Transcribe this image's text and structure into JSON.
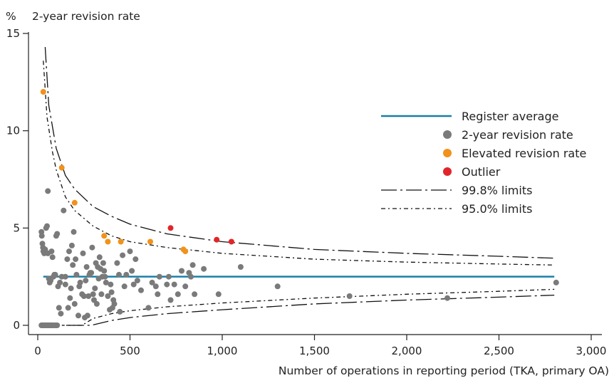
{
  "chart_data": {
    "type": "scatter",
    "title": "2-year revision rate",
    "ylabel": "%",
    "xlabel": "Number of operations in reporting period (TKA, primary OA)",
    "xlim": [
      0,
      3000
    ],
    "ylim": [
      0,
      15
    ],
    "x_ticks": [
      0,
      500,
      1000,
      1500,
      2000,
      2500,
      3000
    ],
    "x_tick_labels": [
      "0",
      "500",
      "1,000",
      "1,500",
      "2,000",
      "2,500",
      "3,000"
    ],
    "y_ticks": [
      0,
      5,
      10,
      15
    ],
    "y_tick_labels": [
      "0",
      "5",
      "10",
      "15"
    ],
    "legend_position": "right",
    "colors": {
      "register_average": "#1a7fa8",
      "revision_rate": "#7a7a7a",
      "elevated": "#f0921b",
      "outlier": "#e0262a",
      "limits": "#111111"
    },
    "register_average": 2.5,
    "legend": [
      {
        "label": "Register average",
        "kind": "line-solid"
      },
      {
        "label": "2-year revision rate",
        "kind": "dot-grey"
      },
      {
        "label": "Elevated revision rate",
        "kind": "dot-orange"
      },
      {
        "label": "Outlier",
        "kind": "dot-red"
      },
      {
        "label": "99.8% limits",
        "kind": "line-longdash"
      },
      {
        "label": "95.0% limits",
        "kind": "line-dashdot"
      }
    ],
    "series": [
      {
        "name": "2-year revision rate",
        "points": [
          [
            20,
            4.8
          ],
          [
            22,
            4.6
          ],
          [
            25,
            4.2
          ],
          [
            28,
            4.0
          ],
          [
            30,
            3.8
          ],
          [
            35,
            3.7
          ],
          [
            40,
            3.9
          ],
          [
            45,
            5.0
          ],
          [
            50,
            5.1
          ],
          [
            55,
            3.7
          ],
          [
            60,
            2.4
          ],
          [
            65,
            2.2
          ],
          [
            70,
            2.3
          ],
          [
            75,
            3.8
          ],
          [
            20,
            0
          ],
          [
            25,
            0
          ],
          [
            30,
            0
          ],
          [
            35,
            0
          ],
          [
            40,
            0
          ],
          [
            45,
            0
          ],
          [
            50,
            0
          ],
          [
            55,
            0
          ],
          [
            60,
            0
          ],
          [
            65,
            0
          ],
          [
            70,
            0
          ],
          [
            75,
            0
          ],
          [
            80,
            0
          ],
          [
            85,
            0
          ],
          [
            95,
            0
          ],
          [
            100,
            0
          ],
          [
            105,
            0
          ],
          [
            55,
            6.9
          ],
          [
            80,
            3.5
          ],
          [
            85,
            2.5
          ],
          [
            90,
            2.6
          ],
          [
            95,
            2.6
          ],
          [
            100,
            4.6
          ],
          [
            105,
            4.7
          ],
          [
            110,
            2.0
          ],
          [
            115,
            0.9
          ],
          [
            120,
            2.2
          ],
          [
            125,
            0.6
          ],
          [
            130,
            2.5
          ],
          [
            140,
            5.9
          ],
          [
            150,
            2.5
          ],
          [
            150,
            2.1
          ],
          [
            160,
            3.4
          ],
          [
            165,
            0.9
          ],
          [
            170,
            3.8
          ],
          [
            175,
            1.4
          ],
          [
            180,
            1.9
          ],
          [
            185,
            4.1
          ],
          [
            190,
            3.1
          ],
          [
            195,
            4.8
          ],
          [
            200,
            1.1
          ],
          [
            205,
            3.4
          ],
          [
            210,
            2.6
          ],
          [
            220,
            0.5
          ],
          [
            225,
            2.0
          ],
          [
            230,
            2.2
          ],
          [
            240,
            1.6
          ],
          [
            245,
            3.7
          ],
          [
            250,
            1.5
          ],
          [
            255,
            0.4
          ],
          [
            260,
            2.3
          ],
          [
            265,
            3.0
          ],
          [
            270,
            0.5
          ],
          [
            275,
            1.5
          ],
          [
            280,
            2.6
          ],
          [
            285,
            2.7
          ],
          [
            290,
            2.7
          ],
          [
            295,
            4.0
          ],
          [
            300,
            1.6
          ],
          [
            305,
            1.3
          ],
          [
            310,
            1.9
          ],
          [
            315,
            3.2
          ],
          [
            320,
            1.1
          ],
          [
            325,
            3.0
          ],
          [
            330,
            2.4
          ],
          [
            335,
            3.5
          ],
          [
            340,
            2.9
          ],
          [
            345,
            1.6
          ],
          [
            350,
            2.5
          ],
          [
            355,
            3.2
          ],
          [
            360,
            2.8
          ],
          [
            365,
            2.5
          ],
          [
            370,
            2.2
          ],
          [
            380,
            1.5
          ],
          [
            390,
            0.8
          ],
          [
            395,
            2.1
          ],
          [
            400,
            1.7
          ],
          [
            405,
            0.9
          ],
          [
            410,
            1.3
          ],
          [
            415,
            1.1
          ],
          [
            430,
            3.2
          ],
          [
            440,
            2.6
          ],
          [
            445,
            0.7
          ],
          [
            460,
            3.6
          ],
          [
            470,
            2.0
          ],
          [
            480,
            2.6
          ],
          [
            500,
            3.8
          ],
          [
            510,
            2.8
          ],
          [
            520,
            2.1
          ],
          [
            530,
            3.4
          ],
          [
            540,
            2.3
          ],
          [
            560,
            1.8
          ],
          [
            600,
            0.9
          ],
          [
            620,
            2.2
          ],
          [
            640,
            2.0
          ],
          [
            650,
            1.6
          ],
          [
            660,
            2.5
          ],
          [
            700,
            2.1
          ],
          [
            710,
            2.5
          ],
          [
            720,
            1.3
          ],
          [
            740,
            2.1
          ],
          [
            760,
            1.6
          ],
          [
            780,
            2.8
          ],
          [
            800,
            2.0
          ],
          [
            820,
            2.7
          ],
          [
            830,
            2.5
          ],
          [
            840,
            3.1
          ],
          [
            850,
            1.6
          ],
          [
            900,
            2.9
          ],
          [
            980,
            1.6
          ],
          [
            1100,
            3.0
          ],
          [
            1300,
            2.0
          ],
          [
            1690,
            1.5
          ],
          [
            2220,
            1.4
          ],
          [
            2810,
            2.2
          ]
        ]
      },
      {
        "name": "Elevated revision rate",
        "points": [
          [
            30,
            12.0
          ],
          [
            130,
            8.1
          ],
          [
            200,
            6.3
          ],
          [
            360,
            4.6
          ],
          [
            380,
            4.3
          ],
          [
            450,
            4.3
          ],
          [
            610,
            4.3
          ],
          [
            790,
            3.9
          ],
          [
            800,
            3.8
          ]
        ]
      },
      {
        "name": "Outlier",
        "points": [
          [
            720,
            5.0
          ],
          [
            970,
            4.4
          ],
          [
            1050,
            4.3
          ]
        ]
      }
    ],
    "limits": {
      "upper_99_8": [
        [
          40,
          14.3
        ],
        [
          60,
          11.3
        ],
        [
          100,
          9.1
        ],
        [
          150,
          7.7
        ],
        [
          200,
          7.0
        ],
        [
          300,
          6.1
        ],
        [
          400,
          5.6
        ],
        [
          500,
          5.2
        ],
        [
          700,
          4.7
        ],
        [
          1000,
          4.3
        ],
        [
          1500,
          3.9
        ],
        [
          2000,
          3.7
        ],
        [
          2500,
          3.55
        ],
        [
          2800,
          3.45
        ]
      ],
      "upper_95_0": [
        [
          30,
          13.6
        ],
        [
          50,
          10.7
        ],
        [
          80,
          8.9
        ],
        [
          100,
          8.0
        ],
        [
          150,
          6.6
        ],
        [
          200,
          5.9
        ],
        [
          300,
          5.1
        ],
        [
          400,
          4.6
        ],
        [
          500,
          4.3
        ],
        [
          700,
          4.0
        ],
        [
          1000,
          3.7
        ],
        [
          1500,
          3.4
        ],
        [
          2000,
          3.25
        ],
        [
          2500,
          3.15
        ],
        [
          2800,
          3.1
        ]
      ],
      "lower_95_0": [
        [
          30,
          0
        ],
        [
          240,
          0
        ],
        [
          300,
          0.35
        ],
        [
          400,
          0.6
        ],
        [
          500,
          0.75
        ],
        [
          700,
          0.95
        ],
        [
          1000,
          1.15
        ],
        [
          1500,
          1.4
        ],
        [
          2000,
          1.6
        ],
        [
          2500,
          1.75
        ],
        [
          2800,
          1.85
        ]
      ],
      "lower_99_8": [
        [
          30,
          0
        ],
        [
          290,
          0
        ],
        [
          400,
          0.25
        ],
        [
          500,
          0.4
        ],
        [
          700,
          0.6
        ],
        [
          1000,
          0.8
        ],
        [
          1500,
          1.1
        ],
        [
          2000,
          1.3
        ],
        [
          2500,
          1.45
        ],
        [
          2800,
          1.55
        ]
      ]
    }
  }
}
